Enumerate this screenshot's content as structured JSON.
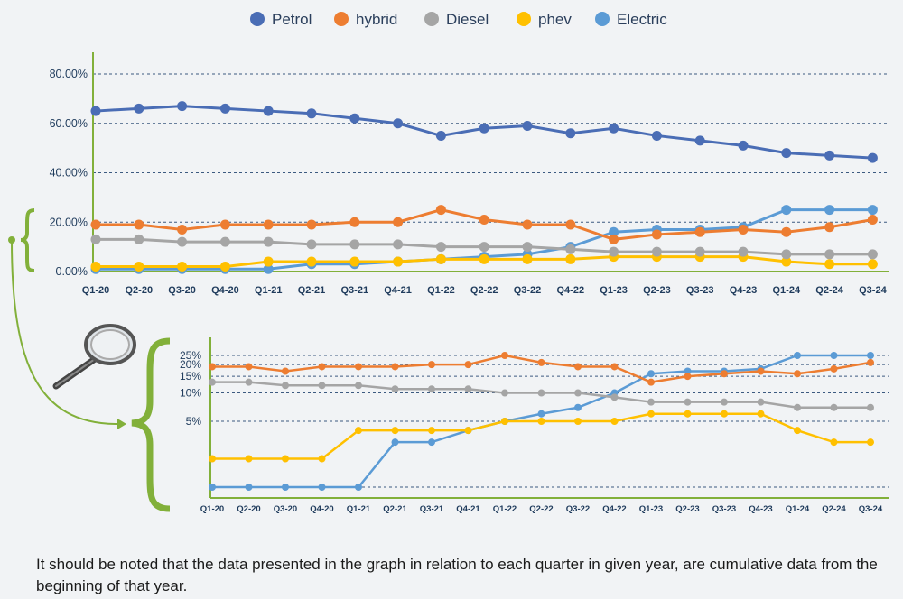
{
  "chart_data": {
    "type": "line",
    "categories": [
      "Q1-20",
      "Q2-20",
      "Q3-20",
      "Q4-20",
      "Q1-21",
      "Q2-21",
      "Q3-21",
      "Q4-21",
      "Q1-22",
      "Q2-22",
      "Q3-22",
      "Q4-22",
      "Q1-23",
      "Q2-23",
      "Q3-23",
      "Q4-23",
      "Q1-24",
      "Q2-24",
      "Q3-24"
    ],
    "series": [
      {
        "name": "Petrol",
        "color": "#4a6db5",
        "values": [
          65,
          66,
          67,
          66,
          65,
          64,
          62,
          60,
          55,
          58,
          59,
          56,
          58,
          55,
          53,
          51,
          48,
          47,
          46
        ]
      },
      {
        "name": "hybrid",
        "color": "#ed7d31",
        "values": [
          19,
          19,
          17,
          19,
          19,
          19,
          20,
          20,
          25,
          21,
          19,
          19,
          13,
          15,
          16,
          17,
          16,
          18,
          21
        ]
      },
      {
        "name": "Diesel",
        "color": "#a5a5a5",
        "values": [
          13,
          13,
          12,
          12,
          12,
          11,
          11,
          11,
          10,
          10,
          10,
          9,
          8,
          8,
          8,
          8,
          7,
          7,
          7
        ]
      },
      {
        "name": "phev",
        "color": "#ffc000",
        "values": [
          2,
          2,
          2,
          2,
          4,
          4,
          4,
          4,
          5,
          5,
          5,
          5,
          6,
          6,
          6,
          6,
          4,
          3,
          3
        ]
      },
      {
        "name": "Electric",
        "color": "#5b9bd5",
        "values": [
          1,
          1,
          1,
          1,
          1,
          3,
          3,
          4,
          5,
          6,
          7,
          10,
          16,
          17,
          17,
          18,
          25,
          25,
          25
        ]
      }
    ],
    "y_ticks": [
      "0.00%",
      "20.00%",
      "40.00%",
      "60.00%",
      "80.00%"
    ],
    "ylim": [
      0,
      80
    ],
    "inset_y_ticks": [
      "5%",
      "10%",
      "15%",
      "20%",
      "25%"
    ],
    "grid": true,
    "legend": "top"
  },
  "footnote": "It should be noted that the data presented in the graph in relation to each quarter in given year, are cumulative data from the beginning of that year."
}
